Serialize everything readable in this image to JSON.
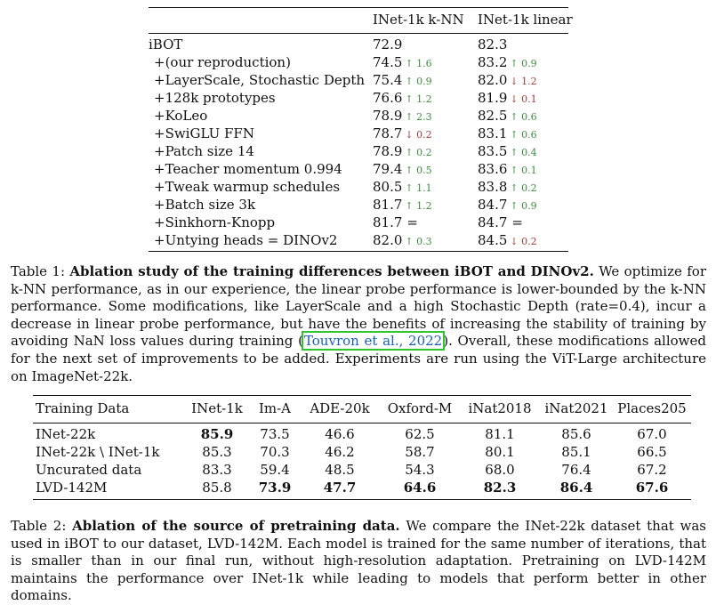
{
  "table1": {
    "headers": [
      "",
      "INet-1k k-NN",
      "INet-1k linear"
    ],
    "rows": [
      {
        "name": "iBOT",
        "knn": "72.9",
        "knn_delta": "",
        "knn_dir": "",
        "lin": "82.3",
        "lin_delta": "",
        "lin_dir": ""
      },
      {
        "name": "+(our reproduction)",
        "knn": "74.5",
        "knn_delta": "↑ 1.6",
        "knn_dir": "up",
        "lin": "83.2",
        "lin_delta": "↑ 0.9",
        "lin_dir": "up"
      },
      {
        "name": "+LayerScale, Stochastic Depth",
        "knn": "75.4",
        "knn_delta": "↑ 0.9",
        "knn_dir": "up",
        "lin": "82.0",
        "lin_delta": "↓ 1.2",
        "lin_dir": "down"
      },
      {
        "name": "+128k prototypes",
        "knn": "76.6",
        "knn_delta": "↑ 1.2",
        "knn_dir": "up",
        "lin": "81.9",
        "lin_delta": "↓ 0.1",
        "lin_dir": "down"
      },
      {
        "name": "+KoLeo",
        "knn": "78.9",
        "knn_delta": "↑ 2.3",
        "knn_dir": "up",
        "lin": "82.5",
        "lin_delta": "↑ 0.6",
        "lin_dir": "up"
      },
      {
        "name": "+SwiGLU FFN",
        "knn": "78.7",
        "knn_delta": "↓ 0.2",
        "knn_dir": "down",
        "lin": "83.1",
        "lin_delta": "↑ 0.6",
        "lin_dir": "up"
      },
      {
        "name": "+Patch size 14",
        "knn": "78.9",
        "knn_delta": "↑ 0.2",
        "knn_dir": "up",
        "lin": "83.5",
        "lin_delta": "↑ 0.4",
        "lin_dir": "up"
      },
      {
        "name": "+Teacher momentum 0.994",
        "knn": "79.4",
        "knn_delta": "↑ 0.5",
        "knn_dir": "up",
        "lin": "83.6",
        "lin_delta": "↑ 0.1",
        "lin_dir": "up"
      },
      {
        "name": "+Tweak warmup schedules",
        "knn": "80.5",
        "knn_delta": "↑ 1.1",
        "knn_dir": "up",
        "lin": "83.8",
        "lin_delta": "↑ 0.2",
        "lin_dir": "up"
      },
      {
        "name": "+Batch size 3k",
        "knn": "81.7",
        "knn_delta": "↑ 1.2",
        "knn_dir": "up",
        "lin": "84.7",
        "lin_delta": "↑ 0.9",
        "lin_dir": "up"
      },
      {
        "name": "+Sinkhorn-Knopp",
        "knn": "81.7",
        "knn_delta": "=",
        "knn_dir": "",
        "lin": "84.7",
        "lin_delta": "=",
        "lin_dir": ""
      },
      {
        "name": "+Untying heads = DINOv2",
        "knn": "82.0",
        "knn_delta": "↑ 0.3",
        "knn_dir": "up",
        "lin": "84.5",
        "lin_delta": "↓ 0.2",
        "lin_dir": "down"
      }
    ]
  },
  "caption1": {
    "label": "Table 1:",
    "bold": "Ablation study of the training differences between iBOT and DINOv2.",
    "text_a": "We optimize for k-NN performance, as in our experience, the linear probe performance is lower-bounded by the k-NN performance. Some modifications, like LayerScale and a high Stochastic Depth (rate=0.4), incur a decrease in linear probe performance, but have the benefits of increasing the stability of training by avoiding NaN loss values during training",
    "cite": "Touvron et al., 2022",
    "text_b": "Overall, these modifications allowed for the next set of improvements to be added. Experiments are run using the ViT-Large architecture on ImageNet-22k."
  },
  "table2": {
    "headers": [
      "Training Data",
      "INet-1k",
      "Im-A",
      "ADE-20k",
      "Oxford-M",
      "iNat2018",
      "iNat2021",
      "Places205"
    ],
    "rows": [
      {
        "cells": [
          "INet-22k",
          "85.9",
          "73.5",
          "46.6",
          "62.5",
          "81.1",
          "85.6",
          "67.0"
        ],
        "bold": [
          1
        ]
      },
      {
        "cells": [
          "INet-22k \\ INet-1k",
          "85.3",
          "70.3",
          "46.2",
          "58.7",
          "80.1",
          "85.1",
          "66.5"
        ],
        "bold": []
      },
      {
        "cells": [
          "Uncurated data",
          "83.3",
          "59.4",
          "48.5",
          "54.3",
          "68.0",
          "76.4",
          "67.2"
        ],
        "bold": []
      },
      {
        "cells": [
          "LVD-142M",
          "85.8",
          "73.9",
          "47.7",
          "64.6",
          "82.3",
          "86.4",
          "67.6"
        ],
        "bold": [
          2,
          3,
          4,
          5,
          6,
          7
        ]
      }
    ]
  },
  "caption2": {
    "label": "Table 2:",
    "bold": "Ablation of the source of pretraining data.",
    "text": "We compare the INet-22k dataset that was used in iBOT to our dataset, LVD-142M. Each model is trained for the same number of iterations, that is smaller than in our final run, without high-resolution adaptation. Pretraining on LVD-142M maintains the performance over INet-1k while leading to models that perform better in other domains."
  },
  "colors": {
    "up": "#3a8f3a",
    "down": "#a33a3a",
    "cite_box": "#2ec42e",
    "cite_text": "#1a5fb4"
  }
}
